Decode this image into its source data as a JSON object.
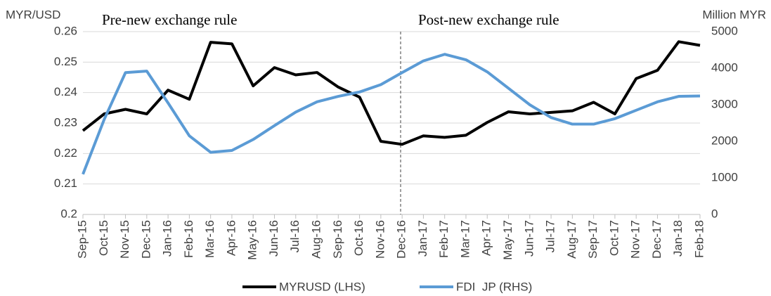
{
  "chart_data": {
    "type": "line",
    "y_label": "MYR/USD",
    "y2_label": "Million MYR",
    "annotations": [
      "Pre-new exchange rule",
      "Post-new exchange rule"
    ],
    "categories": [
      "Sep-15",
      "Oct-15",
      "Nov-15",
      "Dec-15",
      "Jan-16",
      "Feb-16",
      "Mar-16",
      "Apr-16",
      "May-16",
      "Jun-16",
      "Jul-16",
      "Aug-16",
      "Sep-16",
      "Oct-16",
      "Nov-16",
      "Dec-16",
      "Jan-17",
      "Feb-17",
      "Mar-17",
      "Apr-17",
      "May-17",
      "Jun-17",
      "Jul-17",
      "Aug-17",
      "Sep-17",
      "Oct-17",
      "Nov-17",
      "Dec-17",
      "Jan-18",
      "Feb-18"
    ],
    "series": [
      {
        "name": "MYRUSD (LHS)",
        "color": "#000000",
        "values": [
          0.2275,
          0.233,
          0.2345,
          0.233,
          0.2408,
          0.2378,
          0.2565,
          0.256,
          0.2422,
          0.2482,
          0.2458,
          0.2466,
          0.2418,
          0.2385,
          0.224,
          0.223,
          0.2258,
          0.2253,
          0.226,
          0.2302,
          0.2337,
          0.233,
          0.2335,
          0.234,
          0.2368,
          0.233,
          0.2446,
          0.2473,
          0.2567,
          0.2555
        ]
      },
      {
        "name": "FDI  JP (RHS)",
        "color": "#5b9bd5",
        "axis": "y2",
        "values": [
          1100,
          2600,
          3880,
          3920,
          3050,
          2150,
          1700,
          1750,
          2050,
          2430,
          2800,
          3080,
          3230,
          3350,
          3550,
          3880,
          4200,
          4380,
          4230,
          3900,
          3450,
          3000,
          2650,
          2470,
          2470,
          2620,
          2850,
          3080,
          3230,
          3240
        ]
      }
    ],
    "ylim": [
      0.2,
      0.26
    ],
    "yticks": [
      0.2,
      0.21,
      0.22,
      0.23,
      0.24,
      0.25,
      0.26
    ],
    "y2lim": [
      0,
      5000
    ],
    "y2ticks": [
      0,
      1000,
      2000,
      3000,
      4000,
      5000
    ],
    "grid": true,
    "legend": "bottom"
  }
}
